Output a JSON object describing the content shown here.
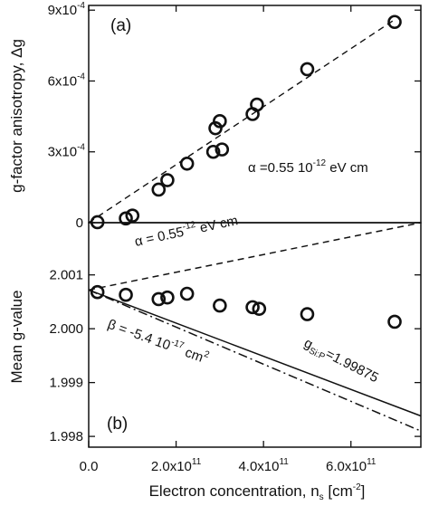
{
  "chart_data": [
    {
      "type": "scatter",
      "panel": "(a)",
      "ylabel": "g-factor anisotropy, Δg",
      "x_unit_scale": 100000000000.0,
      "xlim": [
        0,
        7.6
      ],
      "ylim": [
        0,
        9.2
      ],
      "y_ticks": [
        0,
        3,
        6,
        9
      ],
      "y_tick_labels": [
        "0",
        "3x10",
        "6x10",
        "9x10"
      ],
      "y_tick_exponent": "-4",
      "series": [
        {
          "points": [
            {
              "x": 0.2,
              "y": 0.02
            },
            {
              "x": 0.85,
              "y": 0.18
            },
            {
              "x": 1.0,
              "y": 0.3
            },
            {
              "x": 1.6,
              "y": 1.4
            },
            {
              "x": 1.8,
              "y": 1.8
            },
            {
              "x": 2.25,
              "y": 2.5
            },
            {
              "x": 2.85,
              "y": 3.0
            },
            {
              "x": 2.9,
              "y": 4.0
            },
            {
              "x": 3.0,
              "y": 4.3
            },
            {
              "x": 3.05,
              "y": 3.1
            },
            {
              "x": 3.75,
              "y": 4.6
            },
            {
              "x": 3.85,
              "y": 5.0
            },
            {
              "x": 5.0,
              "y": 6.5
            },
            {
              "x": 7.0,
              "y": 8.5
            }
          ]
        }
      ],
      "fit_line": {
        "style": "dashed",
        "x": [
          0,
          7.0
        ],
        "y": [
          0,
          8.6
        ]
      },
      "annotation": {
        "prefix": "α =0.55  10",
        "exp": "-12",
        "suffix": " eV cm"
      }
    },
    {
      "type": "scatter",
      "panel": "(b)",
      "ylabel": "Mean g-value",
      "xlabel": "Electron concentration, n",
      "xlabel_sub": "s",
      "xlabel_unit": "  [cm",
      "xlabel_unit_exp": "-2",
      "xlabel_unit_end": "]",
      "x_unit_scale": 100000000000.0,
      "xlim": [
        0,
        7.6
      ],
      "ylim": [
        1.9978,
        2.00197
      ],
      "x_ticks": [
        0,
        2,
        4,
        6
      ],
      "x_tick_labels": [
        "0.0",
        "2.0x10",
        "4.0x10",
        "6.0x10"
      ],
      "x_tick_exponent": "11",
      "y_ticks": [
        1.998,
        1.999,
        2.0,
        2.001
      ],
      "y_tick_labels": [
        "1.998",
        "1.999",
        "2.000",
        "2.001"
      ],
      "series": [
        {
          "points": [
            {
              "x": 0.2,
              "y": 2.00068
            },
            {
              "x": 0.85,
              "y": 2.00063
            },
            {
              "x": 1.6,
              "y": 2.00055
            },
            {
              "x": 1.8,
              "y": 2.00058
            },
            {
              "x": 2.25,
              "y": 2.00065
            },
            {
              "x": 3.0,
              "y": 2.00043
            },
            {
              "x": 3.75,
              "y": 2.0004
            },
            {
              "x": 3.9,
              "y": 2.00037
            },
            {
              "x": 5.0,
              "y": 2.00027
            },
            {
              "x": 7.0,
              "y": 2.00013
            }
          ]
        }
      ],
      "lines": [
        {
          "style": "dashed",
          "x": [
            0,
            7.6
          ],
          "y": [
            2.00072,
            2.00197
          ]
        },
        {
          "style": "solid",
          "x": [
            0,
            7.6
          ],
          "y": [
            2.00072,
            1.99838
          ]
        },
        {
          "style": "dashdot",
          "x": [
            0,
            7.6
          ],
          "y": [
            2.00072,
            1.9981
          ]
        }
      ],
      "annotations": {
        "alpha": {
          "prefix": "α = 0.55",
          "exp": "-12",
          "suffix": " eV cm"
        },
        "beta": {
          "prefix": "β = -5.4  10",
          "exp": "-17",
          "suffix": " cm",
          "exp2": "2"
        },
        "gsip": {
          "prefix": "g",
          "sub": "Si:P",
          "suffix": "=1.99875"
        }
      }
    }
  ]
}
